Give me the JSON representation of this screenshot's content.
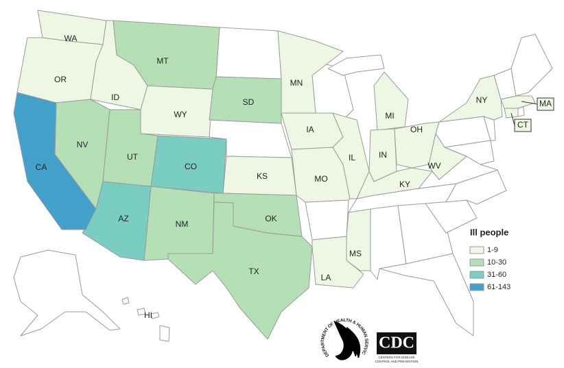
{
  "legend": {
    "title": "Ill people",
    "items": [
      {
        "label": "1-9",
        "color": "#eef7e3",
        "states": [
          "WA",
          "OR",
          "ID",
          "WY",
          "KS",
          "MN",
          "IA",
          "MO",
          "IL",
          "MI",
          "IN",
          "OH",
          "KY",
          "WV",
          "NY",
          "MS",
          "LA",
          "MA",
          "CT"
        ]
      },
      {
        "label": "10-30",
        "color": "#b5e0b5",
        "states": [
          "MT",
          "NV",
          "UT",
          "SD",
          "NM",
          "OK",
          "TX"
        ]
      },
      {
        "label": "31-60",
        "color": "#79cdc3",
        "states": [
          "AZ",
          "CO"
        ]
      },
      {
        "label": "61-143",
        "color": "#42a1cb",
        "states": [
          "CA"
        ]
      }
    ]
  },
  "map": {
    "unshaded_labels": [
      "HI"
    ]
  },
  "logos": {
    "hhs": "DEPARTMENT OF HEALTH & HUMAN SERVICES USA",
    "cdc": "CDC",
    "cdc_line1": "CENTERS FOR DISEASE",
    "cdc_line2": "CONTROL AND PREVENTION"
  }
}
